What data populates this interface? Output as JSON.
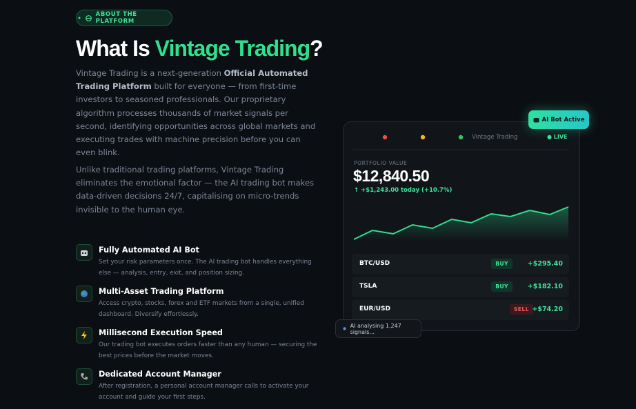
{
  "badge": "ABOUT THE PLATFORM",
  "heading": {
    "before": "What Is ",
    "highlight": "Vintage Trading",
    "after": "?"
  },
  "intro": [
    "Vintage Trading is a next-generation ",
    "Official Automated Trading Platform",
    " built for everyone — from first-time investors to seasoned professionals. Our proprietary algorithm processes thousands of market signals per second, identifying opportunities across global markets and executing trades with machine precision before you can even blink."
  ],
  "paragraph2": "Unlike traditional trading platforms, Vintage Trading eliminates the emotional factor — the AI trading bot makes data-driven decisions 24/7, capitalising on micro-trends invisible to the human eye.",
  "features": [
    {
      "title": "Fully Automated AI Bot",
      "text": "Set your risk parameters once. The AI trading bot handles everything else — analysis, entry, exit, and position sizing."
    },
    {
      "title": "Multi-Asset Trading Platform",
      "text": "Access crypto, stocks, forex and ETF markets from a single, unified dashboard. Diversify effortlessly."
    },
    {
      "title": "Millisecond Execution Speed",
      "text": "Our trading bot executes orders faster than any human — securing the best prices before the market moves."
    },
    {
      "title": "Dedicated Account Manager",
      "text": "After registration, a personal account manager calls to activate your account and guide your first steps."
    }
  ],
  "card": {
    "bot_badge": "AI Bot Active",
    "window_title": "Vintage Trading",
    "live": "● LIVE",
    "portfolio_label": "PORTFOLIO VALUE",
    "portfolio_value": "$12,840.50",
    "change": "↑ +$1,243.00 today (+10.7%)",
    "rows": [
      {
        "pair": "BTC/USD",
        "action": "BUY",
        "pnl": "+$295.40"
      },
      {
        "pair": "TSLA",
        "action": "BUY",
        "pnl": "+$182.10"
      },
      {
        "pair": "EUR/USD",
        "action": "SELL",
        "pnl": "+$74.20"
      }
    ],
    "status": "AI analysing 1,247 signals..."
  }
}
